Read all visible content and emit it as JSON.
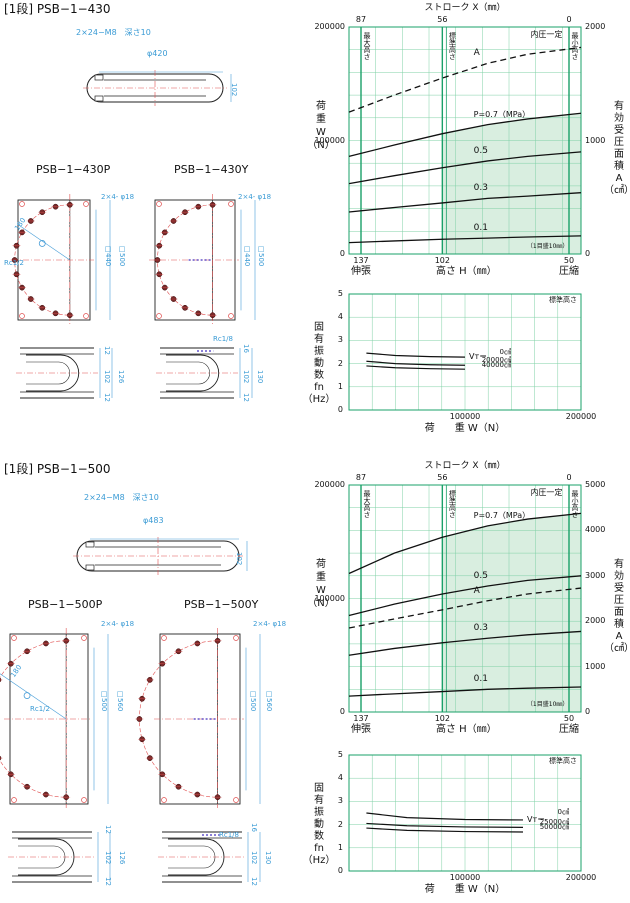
{
  "section1": {
    "title": "[1段] PSB−1−430",
    "bolt_note": "2×24−M8　深さ10",
    "diameter": "φ420",
    "side_dim": "102",
    "view_p": "PSB−1−430P",
    "view_y": "PSB−1−430Y",
    "hole_note_p": "2×4- φ18",
    "hole_note_y": "2×4- φ18",
    "radius": "180",
    "port_p": "Rc1/2",
    "sq_inner_p": "□440",
    "sq_outer_p": "□500",
    "sq_inner_y": "□440",
    "sq_outer_y": "□500",
    "port_y": "Rc1/8",
    "h_top_p": "12",
    "h_mid_p": "102",
    "h_tot_p": "126",
    "h_bot_p": "12",
    "h_top_y": "16",
    "h_mid_y": "102",
    "h_tot_y": "130",
    "h_bot_y": "12"
  },
  "section2": {
    "title": "[1段] PSB−1−500",
    "bolt_note": "2×24−M8　深さ10",
    "diameter": "φ483",
    "side_dim": "102",
    "view_p": "PSB−1−500P",
    "view_y": "PSB−1−500Y",
    "hole_note_p": "2×4- φ18",
    "hole_note_y": "2×4- φ18",
    "radius": "180",
    "port_p": "Rc1/2",
    "sq_inner_p": "□500",
    "sq_outer_p": "□560",
    "sq_inner_y": "□500",
    "sq_outer_y": "□560",
    "port_y": "Rc1/8",
    "h_top_p": "12",
    "h_mid_p": "102",
    "h_tot_p": "126",
    "h_bot_p": "12",
    "h_top_y": "16",
    "h_mid_y": "102",
    "h_tot_y": "130",
    "h_bot_y": "12"
  },
  "chart_data": [
    {
      "type": "line",
      "x_top_label": "ストローク X（㎜）",
      "x_top_ticks": [
        "87",
        "56",
        "0"
      ],
      "x_bottom_ticks": [
        "137",
        "102",
        "50"
      ],
      "x_bottom_left": "伸張",
      "x_bottom_right": "圧縮",
      "x_bottom_label": "高さ H（㎜）",
      "x_note": "（1目盛10㎜）",
      "y_left_ticks": [
        "200000",
        "100000",
        "0"
      ],
      "y_right_ticks": [
        "2000",
        "1000",
        "0"
      ],
      "y_left_label": [
        "荷",
        "重",
        "W",
        "（N）"
      ],
      "y_right_label": [
        "有",
        "効",
        "受",
        "圧",
        "面",
        "積",
        "A",
        "（㎠）"
      ],
      "zone_max": "最大高さ",
      "zone_std": "標準高さ",
      "zone_min": "最小高さ",
      "inner_label": "内圧一定",
      "xlim": [
        137,
        50
      ],
      "ylim": [
        0,
        200000
      ],
      "series": [
        {
          "name": "P=0.7（MPa）",
          "x": [
            137,
            120,
            102,
            85,
            70,
            50
          ],
          "values": [
            86000,
            96000,
            106000,
            114000,
            119000,
            124000
          ]
        },
        {
          "name": "0.5",
          "x": [
            137,
            120,
            102,
            85,
            70,
            50
          ],
          "values": [
            62000,
            69000,
            76000,
            82000,
            86000,
            90000
          ]
        },
        {
          "name": "0.3",
          "x": [
            137,
            120,
            102,
            85,
            70,
            50
          ],
          "values": [
            37000,
            41000,
            45000,
            49000,
            51000,
            54000
          ]
        },
        {
          "name": "0.1",
          "x": [
            137,
            120,
            102,
            85,
            70,
            50
          ],
          "values": [
            10000,
            11500,
            13000,
            14000,
            15000,
            16000
          ]
        },
        {
          "name": "A",
          "x": [
            137,
            120,
            102,
            85,
            70,
            50
          ],
          "values": [
            1250,
            1400,
            1550,
            1680,
            1760,
            1820
          ],
          "axis": "right",
          "dashed": true
        }
      ]
    },
    {
      "type": "line",
      "title": "標準高さ",
      "y_ticks": [
        "5",
        "4",
        "3",
        "2",
        "1",
        "0"
      ],
      "x_ticks": [
        "100000",
        "200000"
      ],
      "x_label": "荷　　重 W（N）",
      "y_label": [
        "固",
        "有",
        "振",
        "動",
        "数",
        "fn",
        "（Hz）"
      ],
      "vt_label": "Vт＝",
      "xlim": [
        0,
        200000
      ],
      "ylim": [
        0,
        5
      ],
      "series": [
        {
          "name": "0㎤",
          "x": [
            15000,
            40000,
            70000,
            100000
          ],
          "values": [
            2.45,
            2.35,
            2.3,
            2.28
          ]
        },
        {
          "name": "20000㎤",
          "x": [
            15000,
            40000,
            70000,
            100000
          ],
          "values": [
            2.1,
            2.0,
            1.95,
            1.93
          ]
        },
        {
          "name": "40000㎤",
          "x": [
            15000,
            40000,
            70000,
            100000
          ],
          "values": [
            1.9,
            1.82,
            1.78,
            1.76
          ]
        }
      ]
    },
    {
      "type": "line",
      "x_top_label": "ストローク X（㎜）",
      "x_top_ticks": [
        "87",
        "56",
        "0"
      ],
      "x_bottom_ticks": [
        "137",
        "102",
        "50"
      ],
      "x_bottom_left": "伸張",
      "x_bottom_right": "圧縮",
      "x_bottom_label": "高さ H（㎜）",
      "x_note": "（1目盛10㎜）",
      "y_left_ticks": [
        "200000",
        "100000",
        "0"
      ],
      "y_right_ticks": [
        "5000",
        "4000",
        "3000",
        "2000",
        "1000",
        "0"
      ],
      "y_left_label": [
        "荷",
        "重",
        "W",
        "（N）"
      ],
      "y_right_label": [
        "有",
        "効",
        "受",
        "圧",
        "面",
        "積",
        "A",
        "（㎠）"
      ],
      "zone_max": "最大高さ",
      "zone_std": "標準高さ",
      "zone_min": "最小高さ",
      "inner_label": "内圧一定",
      "xlim": [
        137,
        50
      ],
      "ylim": [
        0,
        200000
      ],
      "series": [
        {
          "name": "P=0.7（MPa）",
          "x": [
            137,
            120,
            102,
            85,
            70,
            50
          ],
          "values": [
            122000,
            140000,
            154000,
            164000,
            170000,
            175000
          ]
        },
        {
          "name": "0.5",
          "x": [
            137,
            120,
            102,
            85,
            70,
            50
          ],
          "values": [
            85000,
            95000,
            104000,
            111000,
            116000,
            120000
          ]
        },
        {
          "name": "0.3",
          "x": [
            137,
            120,
            102,
            85,
            70,
            50
          ],
          "values": [
            50000,
            56000,
            61000,
            65000,
            68000,
            71000
          ]
        },
        {
          "name": "0.1",
          "x": [
            137,
            120,
            102,
            85,
            70,
            50
          ],
          "values": [
            14000,
            16000,
            18000,
            20000,
            21000,
            22000
          ]
        },
        {
          "name": "A",
          "x": [
            137,
            120,
            102,
            85,
            70,
            50
          ],
          "values": [
            1850,
            2050,
            2250,
            2450,
            2600,
            2730
          ],
          "axis": "right",
          "dashed": true
        }
      ]
    },
    {
      "type": "line",
      "title": "標準高さ",
      "y_ticks": [
        "5",
        "4",
        "3",
        "2",
        "1",
        "0"
      ],
      "x_ticks": [
        "100000",
        "200000"
      ],
      "x_label": "荷　　重 W（N）",
      "y_label": [
        "固",
        "有",
        "振",
        "動",
        "数",
        "fn",
        "（Hz）"
      ],
      "vt_label": "Vт＝",
      "xlim": [
        0,
        200000
      ],
      "ylim": [
        0,
        5
      ],
      "series": [
        {
          "name": "0㎤",
          "x": [
            15000,
            50000,
            100000,
            150000
          ],
          "values": [
            2.5,
            2.3,
            2.22,
            2.2
          ]
        },
        {
          "name": "25000㎤",
          "x": [
            15000,
            50000,
            100000,
            150000
          ],
          "values": [
            2.05,
            1.95,
            1.9,
            1.88
          ]
        },
        {
          "name": "50000㎤",
          "x": [
            15000,
            50000,
            100000,
            150000
          ],
          "values": [
            1.85,
            1.75,
            1.7,
            1.68
          ]
        }
      ]
    }
  ]
}
